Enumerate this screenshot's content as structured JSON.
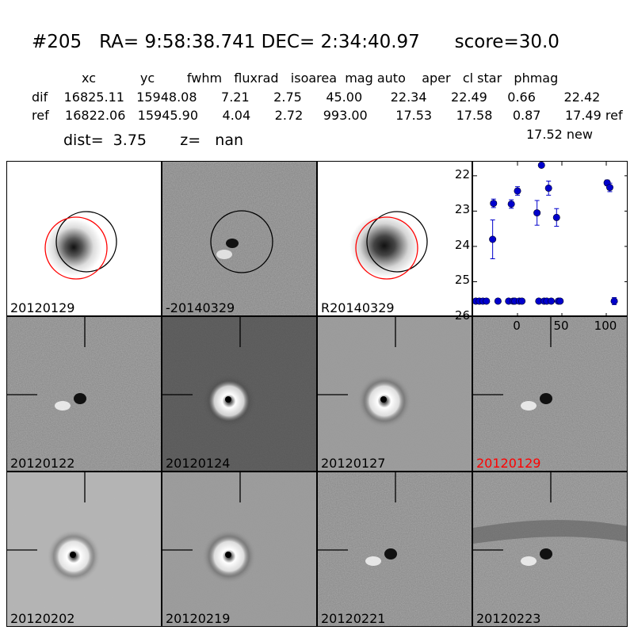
{
  "header": {
    "title_line": "#205   RA= 9:58:38.741 DEC= 2:34:40.97      score=30.0",
    "columns_line": "xc           yc        fwhm   fluxrad   isoarea  mag auto    aper   cl star   phmag",
    "dif_row": "dif    16825.11   15948.08      7.21      2.75      45.00       22.34      22.49     0.66       22.42",
    "ref_row": "ref    16822.06   15945.90      4.04      2.72     993.00       17.53      17.58     0.87      17.49 ref",
    "new_row": "17.52 new",
    "dist_line": "dist=  3.75       z=   nan"
  },
  "top_panels": [
    {
      "label": "20120129",
      "kind": "image"
    },
    {
      "label": "-20140329",
      "kind": "diff"
    },
    {
      "label": "R20140329",
      "kind": "image"
    }
  ],
  "lightcurve_panel": {
    "chart_data": {
      "type": "scatter",
      "xlim": [
        -50,
        125
      ],
      "ylim": [
        26,
        21.6
      ],
      "y_inverted": true,
      "x_ticks": [
        0,
        50,
        100
      ],
      "y_ticks": [
        22,
        23,
        24,
        25,
        26
      ],
      "marker_color": "#0000cc",
      "points": [
        {
          "x": -47,
          "y": 25.55,
          "err": 0
        },
        {
          "x": -43,
          "y": 25.55,
          "err": 0
        },
        {
          "x": -39,
          "y": 25.55,
          "err": 0
        },
        {
          "x": -35,
          "y": 25.55,
          "err": 0
        },
        {
          "x": -28,
          "y": 23.8,
          "err": 0.55
        },
        {
          "x": -27,
          "y": 22.78,
          "err": 0.12
        },
        {
          "x": -22,
          "y": 25.55,
          "err": 0
        },
        {
          "x": -10,
          "y": 25.55,
          "err": 0
        },
        {
          "x": -7,
          "y": 22.8,
          "err": 0.12
        },
        {
          "x": -5,
          "y": 25.55,
          "err": 0
        },
        {
          "x": -3,
          "y": 25.55,
          "err": 0
        },
        {
          "x": 0,
          "y": 22.43,
          "err": 0.12
        },
        {
          "x": 2,
          "y": 25.55,
          "err": 0
        },
        {
          "x": 5,
          "y": 25.55,
          "err": 0
        },
        {
          "x": 22,
          "y": 23.05,
          "err": 0.35
        },
        {
          "x": 24,
          "y": 25.55,
          "err": 0
        },
        {
          "x": 27,
          "y": 21.7,
          "err": 0
        },
        {
          "x": 30,
          "y": 25.55,
          "err": 0
        },
        {
          "x": 33,
          "y": 25.55,
          "err": 0
        },
        {
          "x": 35,
          "y": 22.35,
          "err": 0.2
        },
        {
          "x": 38,
          "y": 25.55,
          "err": 0
        },
        {
          "x": 44,
          "y": 23.18,
          "err": 0.25
        },
        {
          "x": 46,
          "y": 25.55,
          "err": 0
        },
        {
          "x": 48,
          "y": 25.55,
          "err": 0
        },
        {
          "x": 101,
          "y": 22.2,
          "err": 0.08
        },
        {
          "x": 104,
          "y": 22.33,
          "err": 0.12
        },
        {
          "x": 109,
          "y": 25.55,
          "err": 0.1
        }
      ]
    }
  },
  "stamp_panels": [
    {
      "label": "20120122",
      "style": "grainy",
      "highlight": false
    },
    {
      "label": "20120124",
      "style": "dark",
      "highlight": false
    },
    {
      "label": "20120127",
      "style": "smooth",
      "highlight": false
    },
    {
      "label": "20120129",
      "style": "grainy",
      "highlight": true
    },
    {
      "label": "20120202",
      "style": "smooth-light",
      "highlight": false
    },
    {
      "label": "20120219",
      "style": "smooth",
      "highlight": false
    },
    {
      "label": "20120221",
      "style": "grainy",
      "highlight": false
    },
    {
      "label": "20120223",
      "style": "grainy-streak",
      "highlight": false
    }
  ],
  "colors": {
    "highlight_label": "#ff0000",
    "aperture_red": "#ff0000",
    "aperture_black": "#000000",
    "marker": "#0000cc"
  }
}
